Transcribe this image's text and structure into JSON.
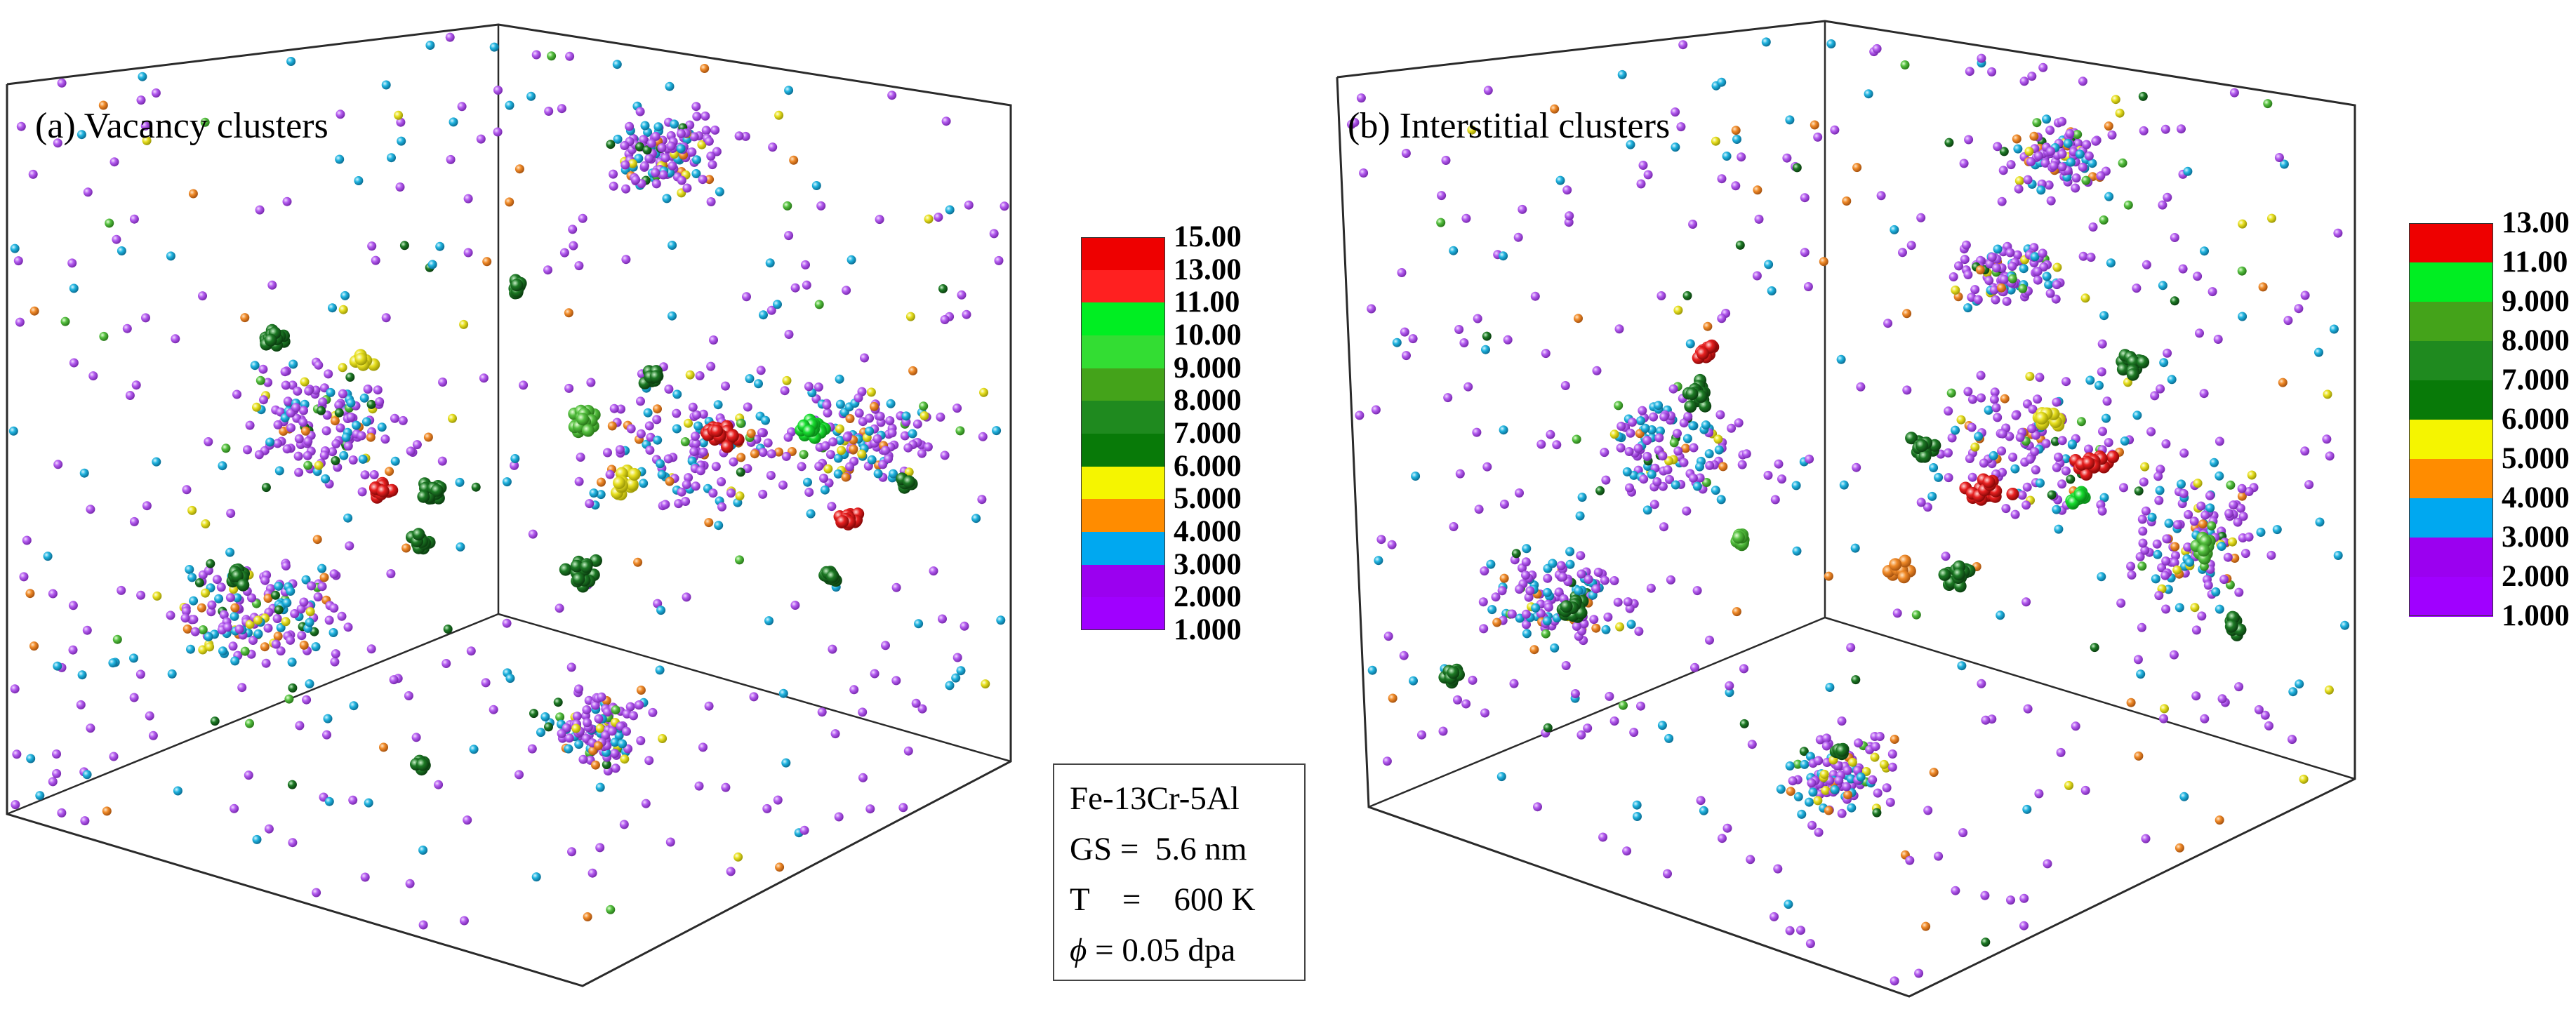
{
  "panels": [
    {
      "id": "a",
      "title": "(a) Vacancy clusters",
      "colorbar_ticks": [
        "15.00",
        "13.00",
        "11.00",
        "10.00",
        "9.000",
        "8.000",
        "7.000",
        "6.000",
        "5.000",
        "4.000",
        "3.000",
        "2.000",
        "1.000"
      ],
      "colorbar_colors": [
        "#ee0000",
        "#ff2020",
        "#00ee22",
        "#33dd33",
        "#44a31a",
        "#1f8a1f",
        "#087a08",
        "#f5f500",
        "#ff8c00",
        "#00a8f0",
        "#9b00f0",
        "#a000ff"
      ]
    },
    {
      "id": "b",
      "title": "(b) Interstitial clusters",
      "colorbar_ticks": [
        "13.00",
        "11.00",
        "9.000",
        "8.000",
        "7.000",
        "6.000",
        "5.000",
        "4.000",
        "3.000",
        "2.000",
        "1.000"
      ],
      "colorbar_colors": [
        "#ee0000",
        "#00ee22",
        "#44a31a",
        "#1f8a1f",
        "#087a08",
        "#f5f500",
        "#ff8c00",
        "#00a8f0",
        "#9b00f0",
        "#a000ff"
      ]
    }
  ],
  "parameters": {
    "material": "Fe-13Cr-5Al",
    "gs_label": "GS =  5.6 nm",
    "t_label": "T    =    600 K",
    "phi_symbol": "ϕ",
    "phi_value": " = 0.05 dpa"
  },
  "point_palette": {
    "purple": "#b45cf0",
    "blue": "#20b4e0",
    "orange": "#f08a28",
    "yellow": "#e8e020",
    "light_green": "#55c040",
    "dark_green": "#1d7a25",
    "bright_green": "#18dd30",
    "red": "#e82020"
  }
}
